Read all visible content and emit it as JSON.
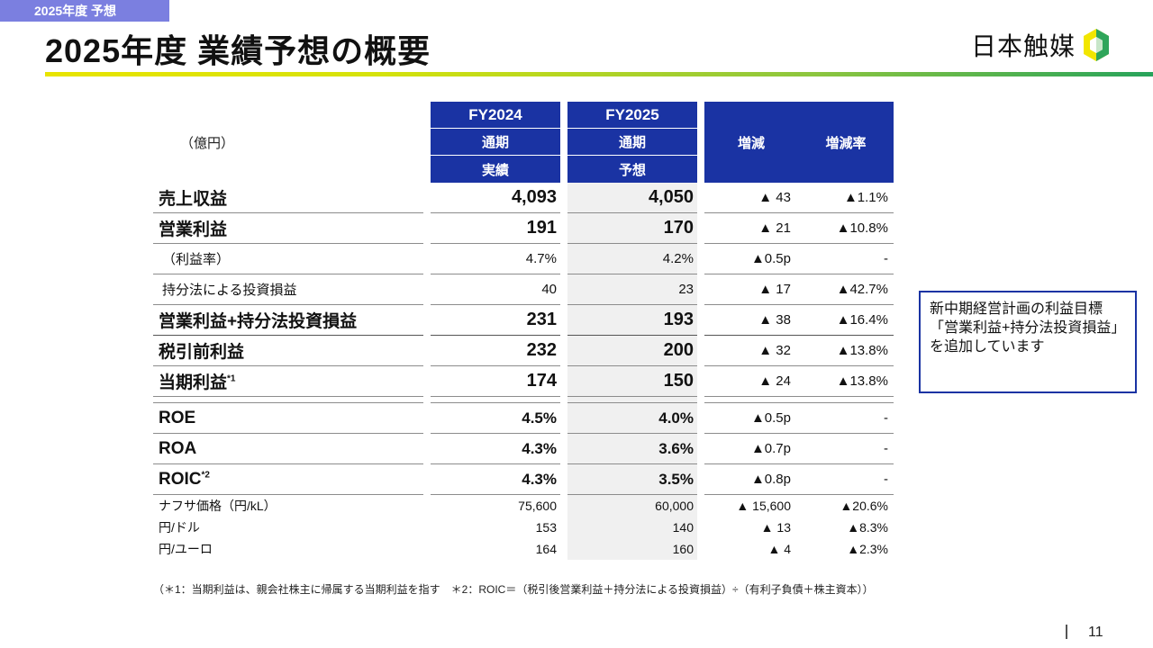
{
  "header": {
    "tag": "2025年度 予想",
    "title": "2025年度 業績予想の概要",
    "logo_text": "日本触媒"
  },
  "table": {
    "unit_label": "（億円）",
    "col_fy2024": {
      "year": "FY2024",
      "period": "通期",
      "kind": "実績"
    },
    "col_fy2025": {
      "year": "FY2025",
      "period": "通期",
      "kind": "予想"
    },
    "col_delta": "増減",
    "col_rate": "増減率",
    "rows": [
      {
        "label": "売上収益",
        "sup": "",
        "fy2024": "4,093",
        "fy2025": "4,050",
        "delta": "▲ 43",
        "rate": "▲1.1%"
      },
      {
        "label": "営業利益",
        "sup": "",
        "fy2024": "191",
        "fy2025": "170",
        "delta": "▲ 21",
        "rate": "▲10.8%"
      },
      {
        "label": "（利益率）",
        "sup": "",
        "fy2024": "4.7%",
        "fy2025": "4.2%",
        "delta": "▲0.5p",
        "rate": "-"
      },
      {
        "label": "持分法による投資損益",
        "sup": "",
        "fy2024": "40",
        "fy2025": "23",
        "delta": "▲ 17",
        "rate": "▲42.7%"
      },
      {
        "label": "営業利益+持分法投資損益",
        "sup": "",
        "fy2024": "231",
        "fy2025": "193",
        "delta": "▲ 38",
        "rate": "▲16.4%"
      },
      {
        "label": "税引前利益",
        "sup": "",
        "fy2024": "232",
        "fy2025": "200",
        "delta": "▲ 32",
        "rate": "▲13.8%"
      },
      {
        "label": "当期利益",
        "sup": "*1",
        "fy2024": "174",
        "fy2025": "150",
        "delta": "▲ 24",
        "rate": "▲13.8%"
      },
      {
        "label": "ROE",
        "sup": "",
        "fy2024": "4.5%",
        "fy2025": "4.0%",
        "delta": "▲0.5p",
        "rate": "-"
      },
      {
        "label": "ROA",
        "sup": "",
        "fy2024": "4.3%",
        "fy2025": "3.6%",
        "delta": "▲0.7p",
        "rate": "-"
      },
      {
        "label": "ROIC",
        "sup": "*2",
        "fy2024": "4.3%",
        "fy2025": "3.5%",
        "delta": "▲0.8p",
        "rate": "-"
      },
      {
        "label": "ナフサ価格（円/kL）",
        "sup": "",
        "fy2024": "75,600",
        "fy2025": "60,000",
        "delta": "▲ 15,600",
        "rate": "▲20.6%"
      },
      {
        "label": "円/ドル",
        "sup": "",
        "fy2024": "153",
        "fy2025": "140",
        "delta": "▲ 13",
        "rate": "▲8.3%"
      },
      {
        "label": "円/ユーロ",
        "sup": "",
        "fy2024": "164",
        "fy2025": "160",
        "delta": "▲ 4",
        "rate": "▲2.3%"
      }
    ]
  },
  "footnote": "（＊1：当期利益は、親会社株主に帰属する当期利益を指す　＊2：ROIC＝（税引後営業利益＋持分法による投資損益）÷（有利子負債＋株主資本））",
  "callout": "新中期経営計画の利益目標「営業利益+持分法投資損益」を追加しています",
  "page_number": "11",
  "colors": {
    "header_blue": "#1a33a3",
    "tag_purple": "#7b7fe0",
    "shade_gray": "#f0f0f0"
  }
}
